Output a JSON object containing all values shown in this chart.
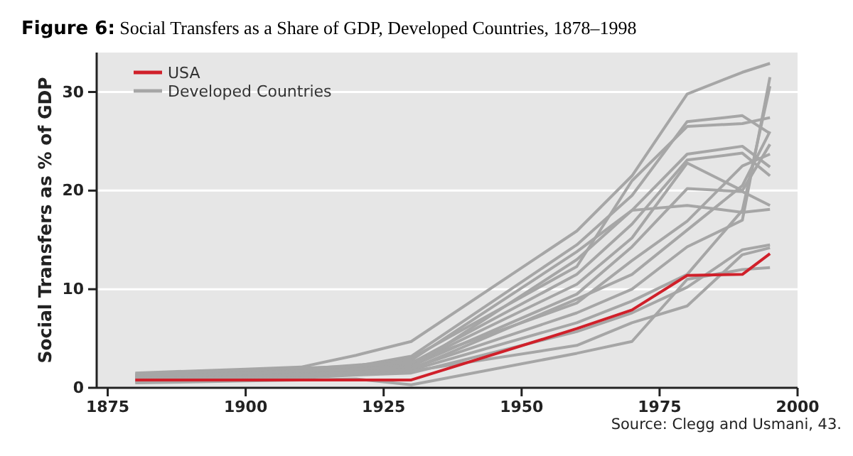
{
  "chart_data": {
    "type": "line",
    "title": "Figure 6: Social Transfers as a Share of GDP, Developed Countries, 1878–1998",
    "ylabel": "Social Transfers as % of GDP",
    "annotations": [
      "Source: Clegg and Usmani, 43."
    ],
    "x": [
      1880,
      1890,
      1900,
      1910,
      1920,
      1930,
      1960,
      1970,
      1980,
      1990,
      1995
    ],
    "xlim": [
      1873,
      2000
    ],
    "xticks": [
      1875,
      1900,
      1925,
      1950,
      1975,
      2000
    ],
    "ylim": [
      0,
      34
    ],
    "yticks": [
      0,
      10,
      20,
      30
    ],
    "grid": "y",
    "legend": "top left",
    "marker": "none",
    "line_style": "solid",
    "series": [
      {
        "name": "Developed Countries",
        "color": "#a6a6a6",
        "values": [
          1.5,
          1.7,
          1.9,
          2.1,
          3.3,
          4.7,
          15.9,
          21.5,
          29.8,
          32.0,
          32.9
        ]
      },
      {
        "color": "#a6a6a6",
        "values": [
          1.2,
          1.4,
          1.6,
          1.8,
          2.2,
          3.2,
          14.5,
          19.5,
          27.0,
          27.6,
          25.8
        ]
      },
      {
        "color": "#a6a6a6",
        "values": [
          1.0,
          1.2,
          1.4,
          1.6,
          2.0,
          3.0,
          12.3,
          21.0,
          26.5,
          26.8,
          27.4
        ]
      },
      {
        "color": "#a6a6a6",
        "values": [
          1.3,
          1.5,
          1.7,
          1.9,
          2.3,
          2.8,
          13.8,
          18.0,
          23.7,
          24.5,
          22.4
        ]
      },
      {
        "color": "#a6a6a6",
        "values": [
          0.9,
          1.1,
          1.3,
          1.5,
          1.9,
          2.5,
          11.5,
          16.6,
          23.1,
          23.8,
          21.5
        ]
      },
      {
        "color": "#a6a6a6",
        "values": [
          1.1,
          1.3,
          1.5,
          1.7,
          2.0,
          2.4,
          10.5,
          15.2,
          22.8,
          20.0,
          24.7
        ]
      },
      {
        "color": "#a6a6a6",
        "values": [
          0.8,
          1.0,
          1.2,
          1.4,
          1.7,
          2.2,
          9.5,
          14.3,
          20.2,
          19.9,
          18.5
        ]
      },
      {
        "color": "#a6a6a6",
        "values": [
          1.4,
          1.6,
          1.8,
          2.0,
          2.2,
          2.6,
          8.6,
          12.9,
          16.9,
          22.5,
          23.7
        ]
      },
      {
        "color": "#a6a6a6",
        "values": [
          0.7,
          0.9,
          1.0,
          1.2,
          1.5,
          2.0,
          7.6,
          10.0,
          14.3,
          17.0,
          31.5
        ]
      },
      {
        "color": "#a6a6a6",
        "values": [
          1.0,
          1.1,
          1.2,
          1.4,
          1.6,
          1.8,
          6.6,
          8.8,
          11.5,
          18.0,
          30.6
        ]
      },
      {
        "color": "#a6a6a6",
        "values": [
          0.6,
          0.7,
          0.9,
          1.0,
          1.3,
          1.5,
          5.7,
          7.6,
          10.2,
          14.0,
          14.5
        ]
      },
      {
        "color": "#a6a6a6",
        "values": [
          0.9,
          1.0,
          1.1,
          1.3,
          1.5,
          1.7,
          4.3,
          6.6,
          8.3,
          13.5,
          14.2
        ]
      },
      {
        "color": "#a6a6a6",
        "values": [
          0.5,
          0.6,
          0.7,
          0.8,
          0.9,
          0.3,
          3.5,
          4.7,
          11.0,
          12.0,
          12.2
        ]
      },
      {
        "color": "#a6a6a6",
        "values": [
          1.2,
          1.3,
          1.5,
          1.7,
          1.9,
          2.1,
          13.0,
          18.0,
          18.5,
          17.8,
          18.1
        ]
      },
      {
        "color": "#a6a6a6",
        "values": [
          0.8,
          0.9,
          1.1,
          1.3,
          1.6,
          1.9,
          9.0,
          11.5,
          16.0,
          20.5,
          26.0
        ]
      },
      {
        "name": "USA",
        "color": "#d0202a",
        "values": [
          0.8,
          0.8,
          0.8,
          0.8,
          0.8,
          0.8,
          6.0,
          7.9,
          11.4,
          11.5,
          13.6
        ]
      }
    ]
  }
}
